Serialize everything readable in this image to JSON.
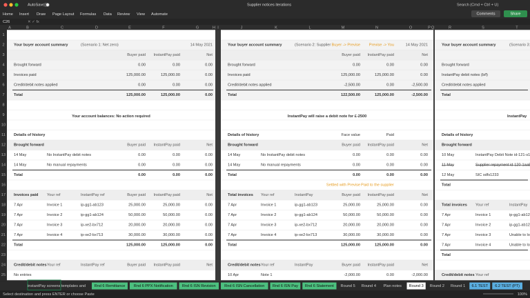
{
  "window": {
    "autosave": "AutoSave",
    "title": "Supplier notices iterations",
    "search": "Search (Cmd + Ctrl + U)"
  },
  "ribbon": {
    "tabs": [
      "Home",
      "Insert",
      "Draw",
      "Page Layout",
      "Formulas",
      "Data",
      "Review",
      "View",
      "Automate"
    ],
    "comments": "Comments",
    "share": "Share"
  },
  "formula_bar": {
    "name_box": "C26"
  },
  "sheet": {
    "columns": [
      "A",
      "B",
      "C",
      "D",
      "E",
      "F",
      "G",
      "H",
      "I",
      "J",
      "K",
      "L",
      "M",
      "N",
      "O",
      "P",
      "Q",
      "R",
      "S",
      "T"
    ],
    "row_numbers": [
      1,
      2,
      3,
      4,
      5,
      6,
      7,
      8,
      9,
      10,
      11,
      12,
      13,
      14,
      15,
      16,
      17,
      18,
      19,
      20,
      21,
      22,
      23,
      24,
      25
    ],
    "panels": [
      {
        "rows": [
          null,
          [
            "Your buyer account summary",
            null,
            "(Scenario 1: Net zero)",
            null,
            null,
            "14 May 2021"
          ],
          [
            null,
            null,
            null,
            "Buyer paid",
            "InstantPay paid",
            "Net"
          ],
          [
            "Brought forward",
            null,
            null,
            "0.00",
            "0.00",
            "0.00"
          ],
          [
            "Invoices paid",
            null,
            null,
            "125,000.00",
            "125,000.00",
            "0.00"
          ],
          [
            "Credit/debit notes applied",
            null,
            null,
            "0.00",
            "0.00",
            "0.00"
          ],
          [
            "Total",
            null,
            null,
            "125,000.00",
            "125,000.00",
            "0.00"
          ],
          null,
          "Your account balances: No action required",
          null,
          [
            "Details of history",
            null,
            null,
            null,
            null,
            null
          ],
          [
            "Brought forward",
            null,
            null,
            "Buyer paid",
            "InstantPay paid",
            "Net"
          ],
          [
            "14 May",
            "No InstantPay debit notes",
            null,
            "0.00",
            "0.00",
            "0.00"
          ],
          [
            "14 May",
            "No manual repayments",
            null,
            "0.00",
            "0.00",
            "0.00"
          ],
          [
            "Total",
            null,
            null,
            "0.00",
            "0.00",
            "0.00"
          ],
          null,
          [
            "Invoices paid",
            "Your ref",
            "InstantPay ref",
            "Buyer paid",
            "InstantPay paid",
            "Net"
          ],
          [
            "7 Apr",
            "Invoice 1",
            "ip-gg1-ab123",
            "25,000.00",
            "25,000.00",
            "0.00"
          ],
          [
            "7 Apr",
            "Invoice 2",
            "ip-gg1-ab124",
            "50,000.00",
            "50,000.00",
            "0.00"
          ],
          [
            "7 Apr",
            "Invoice 3",
            "ip-xe2-bx712",
            "20,000.00",
            "20,000.00",
            "0.00"
          ],
          [
            "7 Apr",
            "Invoice 4",
            "ip-xe2-bx713",
            "30,000.00",
            "30,000.00",
            "0.00"
          ],
          [
            "Total",
            null,
            null,
            "125,000.00",
            "125,000.00",
            "0.00"
          ],
          null,
          [
            "Credit/debit notes",
            "Your ref",
            "InstantPay ref",
            "Buyer paid",
            "InstantPay paid",
            "Net"
          ],
          [
            "No entries",
            null,
            null,
            null,
            null,
            null
          ]
        ]
      },
      {
        "rows": [
          null,
          [
            "Your buyer account summary",
            null,
            "(Scenario 2: Supplier",
            "Buyer -> Previse",
            "Previse -> You",
            "14 May 2021"
          ],
          [
            null,
            null,
            null,
            "Buyer paid",
            "InstantPay paid",
            "Net"
          ],
          [
            "Brought forward",
            null,
            null,
            "0.00",
            "0.00",
            "0.00"
          ],
          [
            "Invoices paid",
            null,
            null,
            "125,000.00",
            "125,000.00",
            "0.00"
          ],
          [
            "Credit/debit notes applied",
            null,
            null,
            "-2,500.00",
            "0.00",
            "-2,500.00"
          ],
          [
            "Total",
            null,
            null,
            "122,500.00",
            "125,000.00",
            "-2,500.00"
          ],
          null,
          "InstantPay will raise a debit note for £-2500",
          null,
          [
            "Details of history",
            null,
            null,
            "Face value",
            "Paid",
            null
          ],
          [
            "Brought forward",
            null,
            null,
            "Buyer paid",
            "InstantPay paid",
            "Net"
          ],
          [
            "14 May",
            "No InstantPay debit notes",
            null,
            "0.00",
            "0.00",
            "0.00"
          ],
          [
            "14 May",
            "No manual repayments",
            null,
            "0.00",
            "0.00",
            "0.00"
          ],
          [
            "Total",
            null,
            null,
            "0.00",
            "0.00",
            "0.00"
          ],
          [
            null,
            null,
            null,
            "Settled with Previse",
            "Paid to the supplier",
            null
          ],
          [
            "Total invoices",
            "Your ref",
            "InstantPay",
            "Buyer paid",
            "InstantPay paid",
            "Net"
          ],
          [
            "7 Apr",
            "Invoice 1",
            "ip-gg1-ab123",
            "25,000.00",
            "25,000.00",
            "0.00"
          ],
          [
            "7 Apr",
            "Invoice 2",
            "ip-gg1-ab124",
            "50,000.00",
            "50,000.00",
            "0.00"
          ],
          [
            "7 Apr",
            "Invoice 3",
            "ip-xe2-bx712",
            "20,000.00",
            "20,000.00",
            "0.00"
          ],
          [
            "7 Apr",
            "Invoice 4",
            "ip-xe2-bx713",
            "30,000.00",
            "30,000.00",
            "0.00"
          ],
          [
            "Total",
            null,
            null,
            "125,000.00",
            "125,000.00",
            "0.00"
          ],
          null,
          [
            "Credit/debit notes",
            "Your ref",
            "InstantPay",
            "Buyer paid",
            "InstantPay paid",
            "Net"
          ],
          [
            "10 Apr",
            "Note 1",
            null,
            "-2,000.00",
            "0.00",
            "-2,000.00"
          ]
        ]
      },
      {
        "rows": [
          null,
          [
            "Your buyer account summary",
            null,
            "(Scenario 3:"
          ],
          null,
          [
            "Brought forward",
            null,
            null
          ],
          [
            "InstantPay debit notes (b/f)",
            null,
            null
          ],
          [
            "Credit/debit notes applied",
            null,
            null
          ],
          [
            "Total",
            null,
            null
          ],
          null,
          "InstantPay",
          null,
          [
            "Details of history",
            null,
            null
          ],
          [
            "Brought forward",
            null,
            null
          ],
          [
            "10 May",
            "InstantPay Debit Note id-121-s17",
            null
          ],
          [
            "11 May",
            "Supplier repayment id-120-1aa8",
            null
          ],
          [
            "12 May",
            "SIC sdfs1233",
            null
          ],
          [
            "Total",
            null,
            null
          ],
          null,
          [
            "Total invoices",
            "Your ref",
            "InstantPay"
          ],
          [
            "7 Apr",
            "Invoice 1",
            "ip-gg1-ab12"
          ],
          [
            "7 Apr",
            "Invoice 2",
            "ip-gg1-ab12"
          ],
          [
            "7 Apr",
            "Invoice 3",
            "Unable to lo"
          ],
          [
            "7 Apr",
            "Invoice 4",
            "Unable to lo"
          ],
          [
            "Total",
            null,
            null
          ],
          null,
          [
            "Credit/debit notes",
            "Your ref",
            null
          ]
        ]
      }
    ]
  },
  "sheet_tabs": [
    "instantPay screens templates and",
    "Rnd 6 Remittance",
    "Rnd 6 PPX Notification",
    "Rnd 6 ISN Revision",
    "Rnd 6 ISN Cancellation",
    "Rnd 6 ISN Pay",
    "Rnd 6 Statement",
    "Round 5",
    "Round 4",
    "Plan notes",
    "Round 3",
    "Round 2",
    "Round 1",
    "6.1 TEST",
    "6.2 TEST (PT)"
  ],
  "status": {
    "message": "Select destination and press ENTER or choose Paste",
    "zoom": "100%"
  }
}
